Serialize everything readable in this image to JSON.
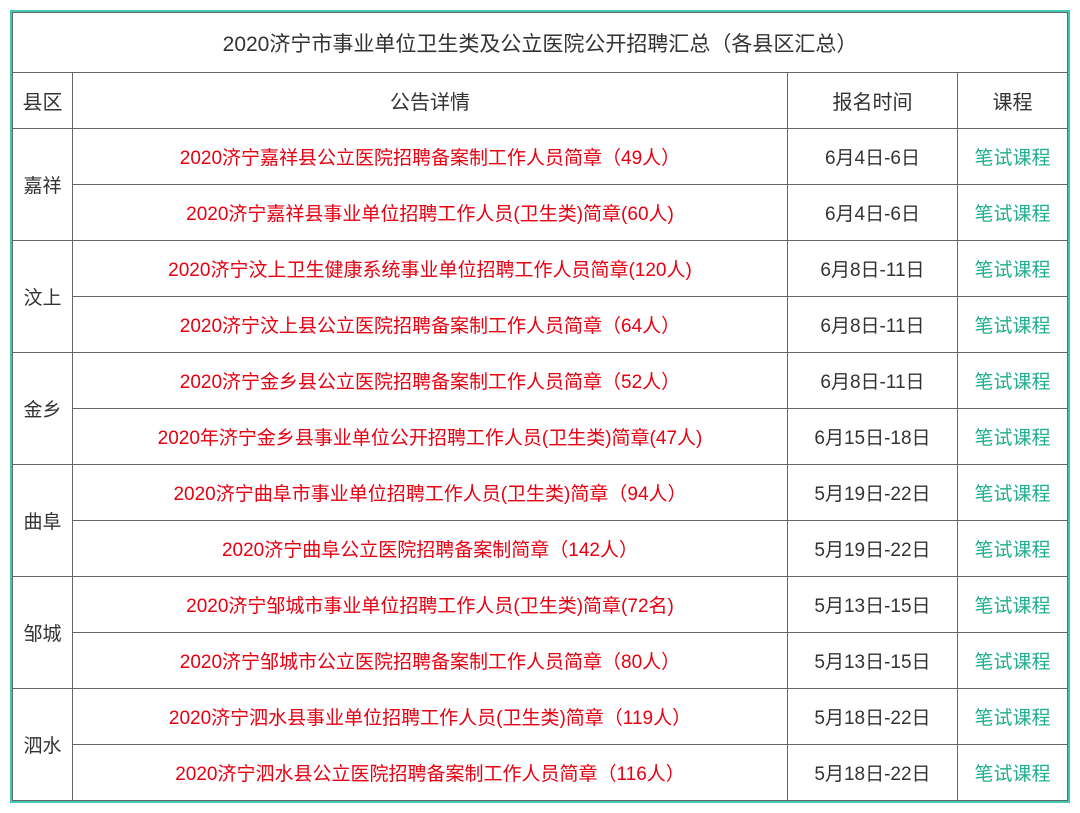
{
  "title": "2020济宁市事业单位卫生类及公立医院公开招聘汇总（各县区汇总）",
  "headers": {
    "county": "县区",
    "detail": "公告详情",
    "date": "报名时间",
    "course": "课程"
  },
  "course_label": "笔试课程",
  "colors": {
    "border_outer": "#3ec9b0",
    "border_inner": "#666666",
    "text_default": "#333333",
    "text_link_red": "#e60012",
    "text_link_green": "#1fae8e",
    "background": "#ffffff"
  },
  "counties": [
    {
      "name": "嘉祥",
      "rows": [
        {
          "detail": "2020济宁嘉祥县公立医院招聘备案制工作人员简章（49人）",
          "date": "6月4日-6日"
        },
        {
          "detail": "2020济宁嘉祥县事业单位招聘工作人员(卫生类)简章(60人)",
          "date": "6月4日-6日"
        }
      ]
    },
    {
      "name": "汶上",
      "rows": [
        {
          "detail": "2020济宁汶上卫生健康系统事业单位招聘工作人员简章(120人)",
          "date": "6月8日-11日"
        },
        {
          "detail": "2020济宁汶上县公立医院招聘备案制工作人员简章（64人）",
          "date": "6月8日-11日"
        }
      ]
    },
    {
      "name": "金乡",
      "rows": [
        {
          "detail": "2020济宁金乡县公立医院招聘备案制工作人员简章（52人）",
          "date": "6月8日-11日"
        },
        {
          "detail": "2020年济宁金乡县事业单位公开招聘工作人员(卫生类)简章(47人)",
          "date": "6月15日-18日"
        }
      ]
    },
    {
      "name": "曲阜",
      "rows": [
        {
          "detail": "2020济宁曲阜市事业单位招聘工作人员(卫生类)简章（94人）",
          "date": "5月19日-22日"
        },
        {
          "detail": "2020济宁曲阜公立医院招聘备案制简章（142人）",
          "date": "5月19日-22日"
        }
      ]
    },
    {
      "name": "邹城",
      "rows": [
        {
          "detail": "2020济宁邹城市事业单位招聘工作人员(卫生类)简章(72名)",
          "date": "5月13日-15日"
        },
        {
          "detail": "2020济宁邹城市公立医院招聘备案制工作人员简章（80人）",
          "date": "5月13日-15日"
        }
      ]
    },
    {
      "name": "泗水",
      "rows": [
        {
          "detail": "2020济宁泗水县事业单位招聘工作人员(卫生类)简章（119人）",
          "date": "5月18日-22日"
        },
        {
          "detail": "2020济宁泗水县公立医院招聘备案制工作人员简章（116人）",
          "date": "5月18日-22日"
        }
      ]
    }
  ]
}
